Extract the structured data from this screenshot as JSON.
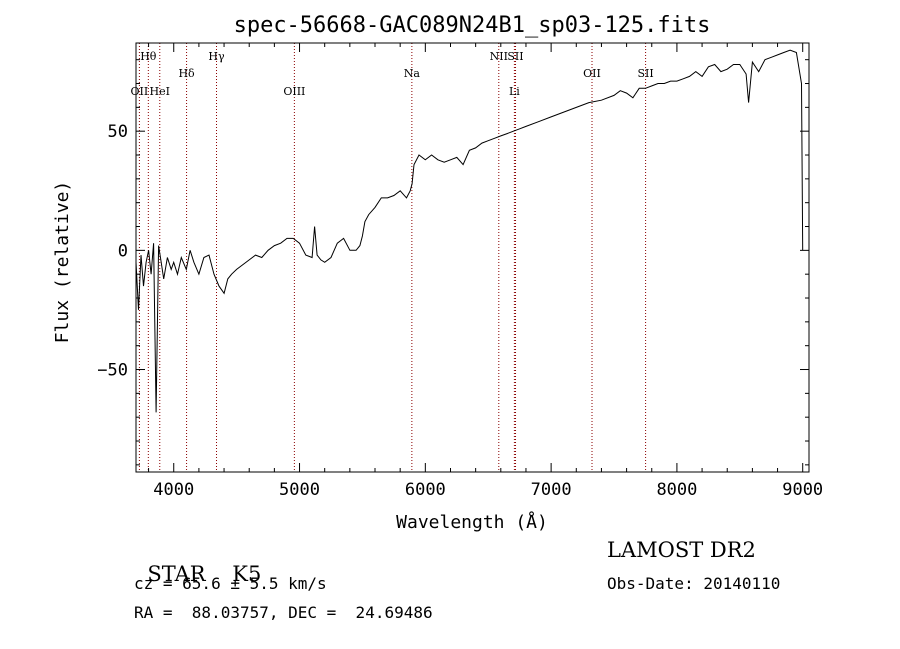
{
  "chart_data": {
    "type": "line",
    "title": "spec-56668-GAC089N24B1_sp03-125.fits",
    "xlabel": "Wavelength (Å)",
    "ylabel": "Flux (relative)",
    "xlim": [
      3700,
      9050
    ],
    "ylim": [
      -93,
      87
    ],
    "x_ticks": [
      4000,
      5000,
      6000,
      7000,
      8000,
      9000
    ],
    "y_ticks": [
      -50,
      0,
      50
    ],
    "grid": false,
    "line_color": "#000000",
    "marker_color": "#8b0000",
    "lines": [
      {
        "label": "Hθ",
        "wavelength": 3798,
        "row": "top"
      },
      {
        "label": "OII",
        "wavelength": 3727,
        "row": "mid"
      },
      {
        "label": "HeI",
        "wavelength": 3889,
        "row": "mid"
      },
      {
        "label": "Hδ",
        "wavelength": 4102,
        "row": "second"
      },
      {
        "label": "Hγ",
        "wavelength": 4340,
        "row": "top"
      },
      {
        "label": "OIII",
        "wavelength": 4959,
        "row": "mid"
      },
      {
        "label": "Na",
        "wavelength": 5893,
        "row": "second"
      },
      {
        "label": "NII",
        "wavelength": 6584,
        "row": "top"
      },
      {
        "label": "SII",
        "wavelength": 6717,
        "row": "top"
      },
      {
        "label": "Li",
        "wavelength": 6708,
        "row": "mid"
      },
      {
        "label": "OII",
        "wavelength": 7325,
        "row": "second"
      },
      {
        "label": "SII",
        "wavelength": 7751,
        "row": "second"
      }
    ],
    "spectrum": {
      "x": [
        3700,
        3720,
        3740,
        3760,
        3780,
        3800,
        3820,
        3840,
        3860,
        3880,
        3900,
        3920,
        3950,
        3980,
        4000,
        4030,
        4060,
        4100,
        4130,
        4160,
        4200,
        4240,
        4280,
        4320,
        4360,
        4400,
        4430,
        4460,
        4500,
        4550,
        4600,
        4650,
        4700,
        4750,
        4800,
        4850,
        4900,
        4950,
        5000,
        5050,
        5100,
        5120,
        5140,
        5170,
        5200,
        5250,
        5300,
        5350,
        5400,
        5450,
        5480,
        5500,
        5520,
        5550,
        5600,
        5650,
        5700,
        5750,
        5800,
        5850,
        5880,
        5895,
        5910,
        5950,
        6000,
        6050,
        6100,
        6150,
        6200,
        6250,
        6300,
        6350,
        6400,
        6450,
        6500,
        6550,
        6600,
        6650,
        6700,
        6750,
        6800,
        6900,
        7000,
        7100,
        7200,
        7300,
        7400,
        7500,
        7550,
        7600,
        7650,
        7700,
        7750,
        7800,
        7850,
        7900,
        7950,
        8000,
        8050,
        8100,
        8150,
        8200,
        8250,
        8300,
        8350,
        8400,
        8450,
        8500,
        8550,
        8570,
        8600,
        8650,
        8700,
        8750,
        8800,
        8850,
        8900,
        8950,
        8990,
        9000
      ],
      "y": [
        -5,
        -25,
        -2,
        -15,
        -5,
        0,
        -10,
        3,
        -68,
        2,
        -5,
        -12,
        -3,
        -8,
        -5,
        -10,
        -3,
        -8,
        0,
        -5,
        -10,
        -3,
        -2,
        -10,
        -15,
        -18,
        -12,
        -10,
        -8,
        -6,
        -4,
        -2,
        -3,
        0,
        2,
        3,
        5,
        5,
        3,
        -2,
        -3,
        10,
        -2,
        -4,
        -5,
        -3,
        3,
        5,
        0,
        0,
        2,
        6,
        12,
        15,
        18,
        22,
        22,
        23,
        25,
        22,
        25,
        28,
        36,
        40,
        38,
        40,
        38,
        37,
        38,
        39,
        36,
        42,
        43,
        45,
        46,
        47,
        48,
        49,
        50,
        51,
        52,
        54,
        56,
        58,
        60,
        62,
        63,
        65,
        67,
        66,
        64,
        68,
        68,
        69,
        70,
        70,
        71,
        71,
        72,
        73,
        75,
        73,
        77,
        78,
        75,
        76,
        78,
        78,
        74,
        62,
        79,
        75,
        80,
        81,
        82,
        83,
        84,
        83,
        70,
        0
      ]
    }
  },
  "info": {
    "object_class": "STAR",
    "subclass": "K5",
    "survey": "LAMOST DR2",
    "redshift_line": "cz = 65.6 ± 5.5 km/s",
    "obs_date": "Obs-Date: 20140110",
    "coords": "RA =  88.03757, DEC =  24.69486"
  }
}
